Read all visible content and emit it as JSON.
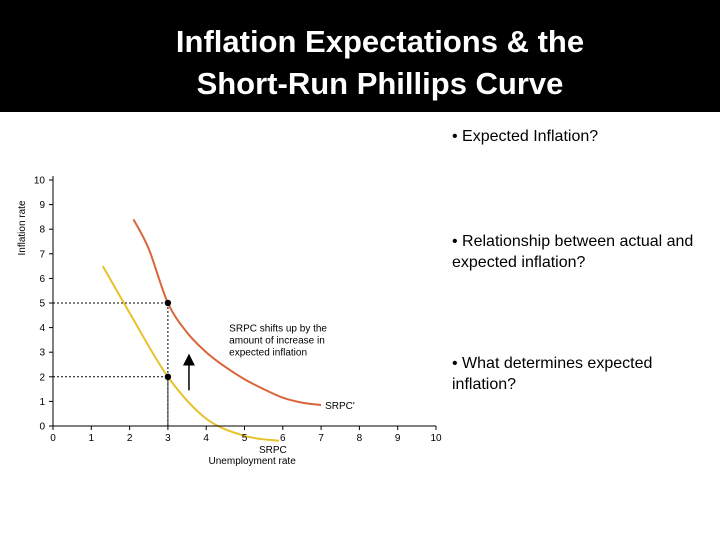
{
  "slide": {
    "title_line1": "Inflation Expectations & the",
    "title_line2": "Short-Run Phillips Curve",
    "bullets": [
      "• Expected Inflation?",
      "• Relationship between actual and expected inflation?",
      "• What determines expected inflation?"
    ]
  },
  "colors": {
    "header_bg": "#000000",
    "srpc_yellow": "#E8C02A",
    "srpc_prime_orange": "#D9663A",
    "axis": "#000000"
  },
  "chart_data": {
    "type": "line",
    "xlabel": "Unemployment rate",
    "ylabel": "Inflation rate",
    "xlim": [
      0,
      10
    ],
    "ylim": [
      0,
      10
    ],
    "xticks": [
      0,
      1,
      2,
      3,
      4,
      5,
      6,
      7,
      8,
      9,
      10
    ],
    "yticks": [
      0,
      1,
      2,
      3,
      4,
      5,
      6,
      7,
      8,
      9,
      10
    ],
    "grid": false,
    "series": [
      {
        "name": "SRPC",
        "color": "#E8C02A",
        "x": [
          1.3,
          2.0,
          3.0,
          4.0,
          5.0,
          5.9
        ],
        "y": [
          6.5,
          4.6,
          2.0,
          0.3,
          -0.4,
          -0.6
        ]
      },
      {
        "name": "SRPC'",
        "color": "#D9663A",
        "x": [
          2.1,
          2.5,
          3.0,
          3.5,
          4.0,
          4.5,
          5.0,
          5.5,
          6.0,
          6.5,
          7.0
        ],
        "y": [
          8.4,
          7.2,
          5.0,
          3.8,
          3.0,
          2.4,
          1.9,
          1.5,
          1.15,
          0.95,
          0.85
        ]
      }
    ],
    "points": [
      {
        "x": 3,
        "y": 5
      },
      {
        "x": 3,
        "y": 2
      }
    ],
    "annotation": "SRPC shifts up by the amount of increase in expected inflation"
  }
}
